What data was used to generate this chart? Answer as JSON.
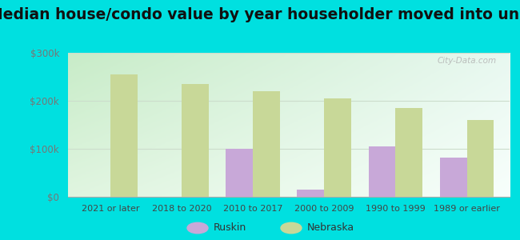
{
  "title": "Median house/condo value by year householder moved into unit",
  "categories": [
    "2021 or later",
    "2018 to 2020",
    "2010 to 2017",
    "2000 to 2009",
    "1990 to 1999",
    "1989 or earlier"
  ],
  "ruskin_values": [
    null,
    null,
    100000,
    15000,
    105000,
    82000
  ],
  "nebraska_values": [
    255000,
    235000,
    220000,
    205000,
    185000,
    160000
  ],
  "ruskin_color": "#c8a8d8",
  "nebraska_color": "#c8d898",
  "bg_outer": "#00e0e0",
  "bg_inner_topleft": "#c8ecc8",
  "bg_inner_topright": "#e8f8f0",
  "bg_inner_bottomleft": "#e0f5e0",
  "bg_inner_bottomright": "#f8fffc",
  "ylim": [
    0,
    300000
  ],
  "yticks": [
    0,
    100000,
    200000,
    300000
  ],
  "bar_width": 0.38,
  "title_fontsize": 13.5,
  "legend_labels": [
    "Ruskin",
    "Nebraska"
  ],
  "watermark": "City-Data.com",
  "ytick_color": "#777777",
  "xtick_color": "#444444",
  "grid_color": "#ccddcc"
}
